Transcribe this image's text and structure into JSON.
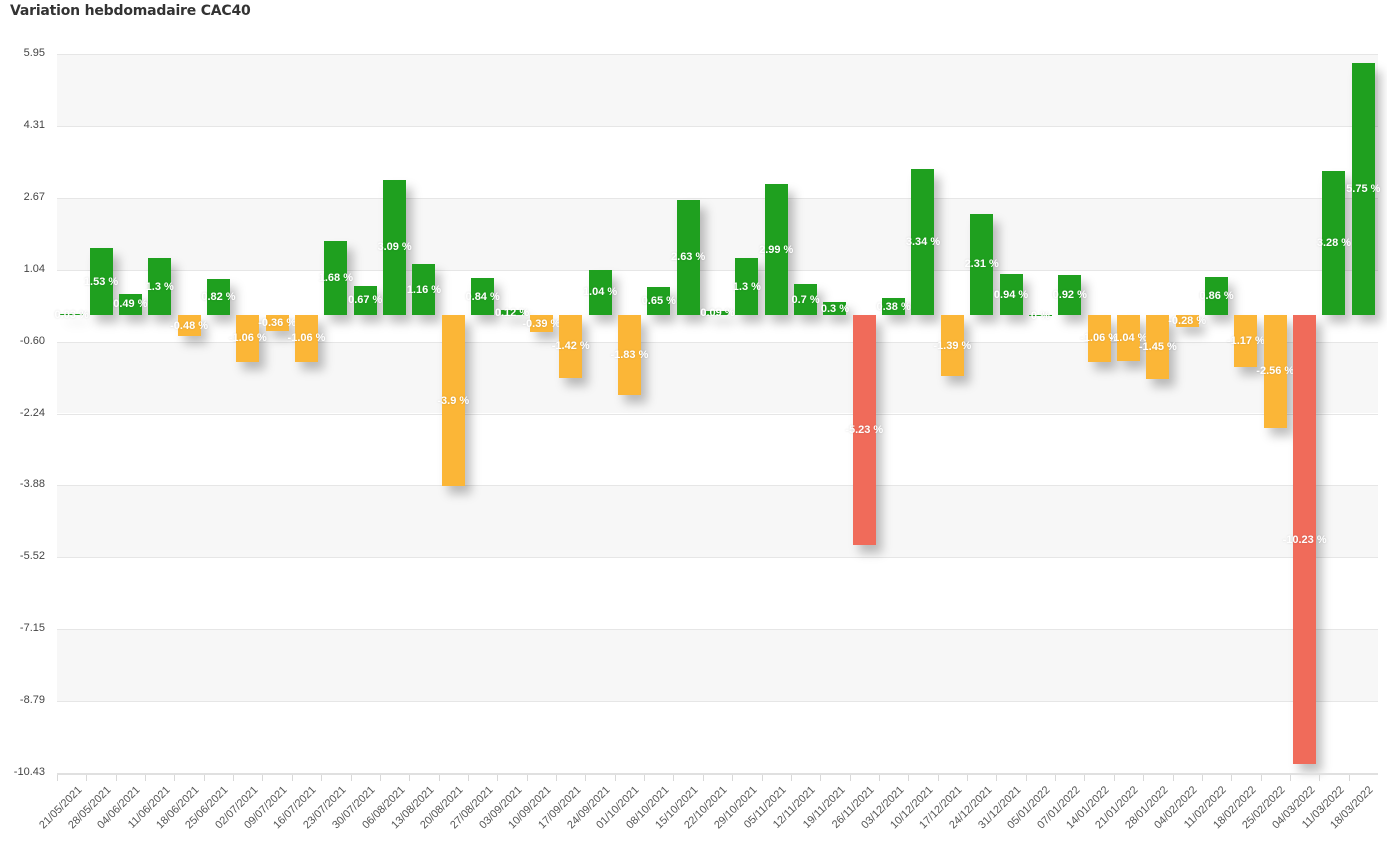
{
  "title": "Variation hebdomadaire CAC40",
  "colors": {
    "positive": "#1fa01f",
    "negative_small": "#fbb637",
    "negative_large": "#f06b5a",
    "grid": "#e6e6e6",
    "band": "#f7f7f7"
  },
  "y_axis": {
    "label": "%",
    "ticks": [
      "5.95",
      "4.31",
      "2.67",
      "1.04",
      "-0.60",
      "-2.24",
      "-3.88",
      "-5.52",
      "-7.15",
      "-8.79",
      "-10.43"
    ]
  },
  "chart_data": {
    "type": "bar",
    "title": "Variation hebdomadaire CAC40",
    "xlabel": "",
    "ylabel": "%",
    "ylim": [
      -10.43,
      5.95
    ],
    "grid": true,
    "legend": "none",
    "categories": [
      "21/05/2021",
      "28/05/2021",
      "04/06/2021",
      "11/06/2021",
      "18/06/2021",
      "25/06/2021",
      "02/07/2021",
      "09/07/2021",
      "16/07/2021",
      "23/07/2021",
      "30/07/2021",
      "06/08/2021",
      "13/08/2021",
      "20/08/2021",
      "27/08/2021",
      "03/09/2021",
      "10/09/2021",
      "17/09/2021",
      "24/09/2021",
      "01/10/2021",
      "08/10/2021",
      "15/10/2021",
      "22/10/2021",
      "29/10/2021",
      "05/11/2021",
      "12/11/2021",
      "19/11/2021",
      "26/11/2021",
      "03/12/2021",
      "10/12/2021",
      "17/12/2021",
      "24/12/2021",
      "31/12/2021",
      "05/01/2022",
      "07/01/2022",
      "14/01/2022",
      "21/01/2022",
      "28/01/2022",
      "04/02/2022",
      "11/02/2022",
      "18/02/2022",
      "25/02/2022",
      "04/03/2022",
      "11/03/2022",
      "18/03/2022"
    ],
    "values": [
      0.03,
      1.53,
      0.49,
      1.3,
      -0.48,
      0.82,
      -1.06,
      -0.36,
      -1.06,
      1.68,
      0.67,
      3.09,
      1.16,
      -3.9,
      0.84,
      0.12,
      -0.39,
      -1.42,
      1.04,
      -1.83,
      0.65,
      2.63,
      0.09,
      1.3,
      2.99,
      0.7,
      0.3,
      -5.23,
      0.38,
      3.34,
      -1.39,
      2.31,
      0.94,
      0,
      0.92,
      -1.06,
      -1.04,
      -1.45,
      -0.28,
      0.86,
      -1.17,
      -2.56,
      -10.23,
      3.28,
      5.75
    ],
    "labels": [
      "0.03 %",
      "1.53 %",
      "0.49 %",
      "1.3 %",
      "-0.48 %",
      "0.82 %",
      "-1.06 %",
      "-0.36 %",
      "-1.06 %",
      "1.68 %",
      "0.67 %",
      "3.09 %",
      "1.16 %",
      "-3.9 %",
      "0.84 %",
      "0.12 %",
      "-0.39 %",
      "-1.42 %",
      "1.04 %",
      "-1.83 %",
      "0.65 %",
      "2.63 %",
      "0.09 %",
      "1.3 %",
      "2.99 %",
      "0.7 %",
      "0.3 %",
      "-5.23 %",
      "0.38 %",
      "3.34 %",
      "-1.39 %",
      "2.31 %",
      "0.94 %",
      "0 %",
      "0.92 %",
      "-1.06 %",
      "-1.04 %",
      "-1.45 %",
      "-0.28 %",
      "0.86 %",
      "-1.17 %",
      "-2.56 %",
      "-10.23 %",
      "3.28 %",
      "5.75 %"
    ]
  }
}
